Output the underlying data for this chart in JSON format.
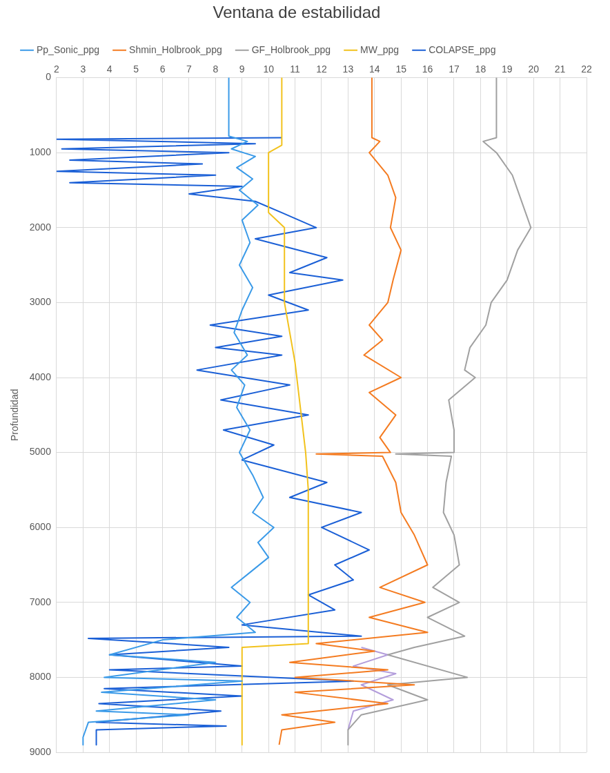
{
  "chart_data": {
    "type": "line",
    "title": "Ventana de estabilidad",
    "ylabel": "Profundidad",
    "xlim": [
      2,
      22
    ],
    "xticks": [
      2,
      3,
      4,
      5,
      6,
      7,
      8,
      9,
      10,
      11,
      12,
      13,
      14,
      15,
      16,
      17,
      18,
      19,
      20,
      21,
      22
    ],
    "ylim": [
      9000,
      0
    ],
    "yticks": [
      0,
      1000,
      2000,
      3000,
      4000,
      5000,
      6000,
      7000,
      8000,
      9000
    ],
    "grid": true,
    "legend": "top",
    "marker": "none",
    "series": [
      {
        "name": "Pp_Sonic_ppg",
        "color": "#3a9ae8",
        "x": [
          8.5,
          8.5,
          9.2,
          8.6,
          9.5,
          8.8,
          9.4,
          8.9,
          9.6,
          9.0,
          9.3,
          8.9,
          9.4,
          9.0,
          8.7,
          9.2,
          8.6,
          9.1,
          8.8,
          9.3,
          8.9,
          9.4,
          9.8,
          9.4,
          10.2,
          9.6,
          10.0,
          9.3,
          8.6,
          9.3,
          8.8,
          9.5,
          6,
          4,
          8,
          3.8,
          9,
          3.7,
          8,
          3.5,
          7,
          3.2,
          3.0,
          3.0
        ],
        "values": [
          0,
          780,
          850,
          950,
          1050,
          1200,
          1350,
          1500,
          1700,
          1900,
          2200,
          2500,
          2800,
          3100,
          3400,
          3700,
          3900,
          4100,
          4400,
          4700,
          5000,
          5300,
          5600,
          5800,
          6000,
          6200,
          6400,
          6600,
          6800,
          7000,
          7200,
          7400,
          7500,
          7700,
          7800,
          8000,
          8050,
          8200,
          8300,
          8450,
          8500,
          8600,
          8800,
          8900
        ]
      },
      {
        "name": "Shmin_Holbrook_ppg",
        "color": "#f47b20",
        "x": [
          13.9,
          13.9,
          14.2,
          13.8,
          14.5,
          14.8,
          14.6,
          15.0,
          14.7,
          14.5,
          13.8,
          14.3,
          13.6,
          15,
          13.8,
          14.8,
          14.2,
          14.6,
          11.8,
          14.3,
          14.8,
          15.0,
          15.5,
          16.0,
          14.2,
          15.9,
          13.8,
          16.0,
          11.8,
          14,
          10.8,
          14.5,
          11.0,
          15.5,
          11,
          14.5,
          10.5,
          12.5,
          10.5,
          10.4
        ],
        "values": [
          0,
          800,
          850,
          1000,
          1300,
          1600,
          2000,
          2300,
          2700,
          3000,
          3300,
          3500,
          3700,
          4000,
          4200,
          4500,
          4800,
          5000,
          5020,
          5050,
          5400,
          5800,
          6100,
          6500,
          6800,
          7000,
          7200,
          7400,
          7550,
          7650,
          7800,
          7900,
          8000,
          8100,
          8200,
          8350,
          8500,
          8600,
          8700,
          8900
        ]
      },
      {
        "name": "GF_Holbrook_ppg",
        "color": "#a0a0a0",
        "x": [
          18.6,
          18.6,
          18.1,
          18.6,
          19.2,
          19.5,
          19.9,
          19.4,
          19.0,
          18.4,
          18.2,
          17.6,
          17.4,
          17.8,
          16.8,
          17.0,
          17.0,
          14.8,
          16.9,
          16.7,
          16.6,
          17.0,
          17.2,
          16.2,
          17.2,
          16.0,
          17.4,
          15.5,
          14.5,
          17.5,
          14.5,
          16,
          13.5,
          13.0,
          13.0
        ],
        "values": [
          0,
          800,
          850,
          1000,
          1300,
          1600,
          2000,
          2300,
          2700,
          3000,
          3300,
          3600,
          3900,
          4000,
          4300,
          4700,
          5000,
          5020,
          5050,
          5400,
          5800,
          6100,
          6500,
          6800,
          7000,
          7200,
          7450,
          7600,
          7700,
          8000,
          8100,
          8300,
          8500,
          8700,
          8900
        ]
      },
      {
        "name": "MW_ppg",
        "color": "#f2c21c",
        "x": [
          10.5,
          10.5,
          10.0,
          10.0,
          10.6,
          10.6,
          10.8,
          11.0,
          11.2,
          11.4,
          11.5,
          11.5,
          9.0,
          9.0
        ],
        "values": [
          0,
          900,
          1000,
          1800,
          2000,
          3000,
          3400,
          3800,
          4400,
          5000,
          5500,
          7550,
          7600,
          8900
        ]
      },
      {
        "name": "COLAPSE_ppg",
        "color": "#1a5fd6",
        "x": [
          10.5,
          2,
          9.5,
          2.2,
          8.5,
          2.5,
          7.5,
          2,
          8,
          2.5,
          9,
          7,
          9.5,
          10.5,
          11.8,
          9.5,
          12.2,
          10.8,
          12.8,
          10,
          11.5,
          7.8,
          10.5,
          8,
          10.5,
          7.3,
          10.8,
          8.2,
          11.5,
          8.3,
          10.2,
          9,
          12.2,
          10.8,
          13.5,
          12,
          13.8,
          12.5,
          13.2,
          11.5,
          12.5,
          9,
          13.5,
          3.2,
          8.5,
          4,
          9,
          4,
          13.2,
          3.8,
          9,
          3.6,
          8.2,
          3.5,
          8.4,
          3.5,
          3.5
        ],
        "values": [
          800,
          820,
          880,
          950,
          1000,
          1100,
          1150,
          1250,
          1300,
          1400,
          1450,
          1550,
          1650,
          1800,
          2000,
          2150,
          2400,
          2600,
          2700,
          2900,
          3100,
          3300,
          3450,
          3600,
          3700,
          3900,
          4100,
          4300,
          4500,
          4700,
          4900,
          5100,
          5400,
          5600,
          5800,
          6000,
          6300,
          6500,
          6700,
          6900,
          7100,
          7300,
          7450,
          7480,
          7600,
          7700,
          7850,
          7900,
          8050,
          8150,
          8250,
          8350,
          8450,
          8600,
          8650,
          8700,
          8900
        ]
      },
      {
        "color": "#b39ddb",
        "x": [
          13.5,
          14.5,
          13.2,
          14.8,
          13.5,
          14.7,
          13.2,
          13.0
        ],
        "values": [
          7600,
          7700,
          7850,
          7950,
          8100,
          8300,
          8450,
          8700
        ]
      }
    ]
  }
}
